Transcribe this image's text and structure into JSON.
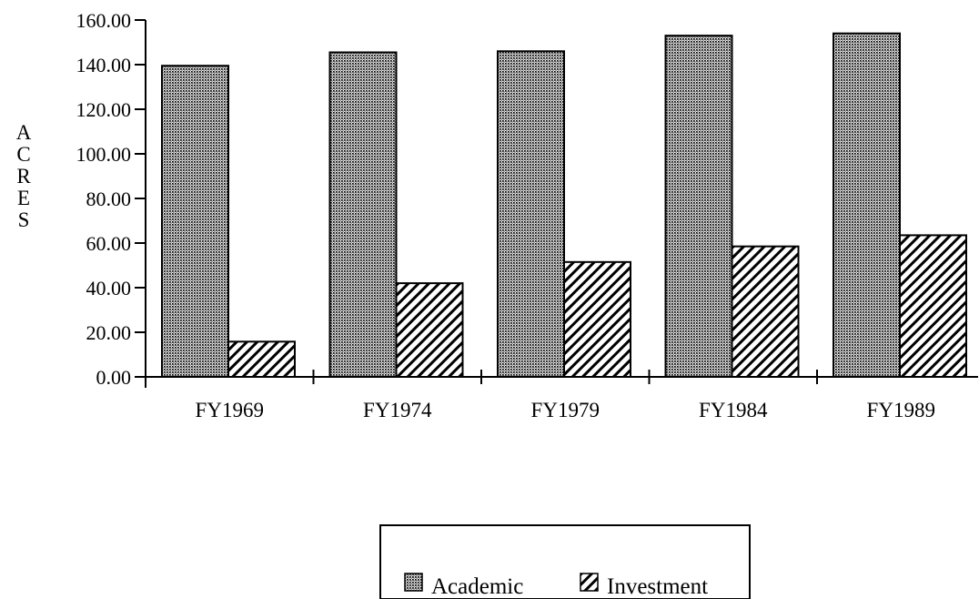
{
  "chart_data": {
    "type": "bar",
    "title": "",
    "xlabel": "",
    "ylabel": "ACRES",
    "categories": [
      "FY1969",
      "FY1974",
      "FY1979",
      "FY1984",
      "FY1989"
    ],
    "series": [
      {
        "name": "Academic",
        "values": [
          139.5,
          145.5,
          146.0,
          153.0,
          154.0
        ],
        "pattern": "dots",
        "color": "#000000"
      },
      {
        "name": "Investment",
        "values": [
          15.8,
          42.0,
          51.5,
          58.5,
          63.5
        ],
        "pattern": "diagonal-hatch",
        "color": "#000000"
      }
    ],
    "ylim": [
      0,
      160
    ],
    "yticks": [
      0,
      20,
      40,
      60,
      80,
      100,
      120,
      140,
      160
    ],
    "ytick_labels": [
      "0.00",
      "20.00",
      "40.00",
      "60.00",
      "80.00",
      "100.00",
      "120.00",
      "140.00",
      "160.00"
    ],
    "grid": false,
    "legend": "bottom-center"
  }
}
